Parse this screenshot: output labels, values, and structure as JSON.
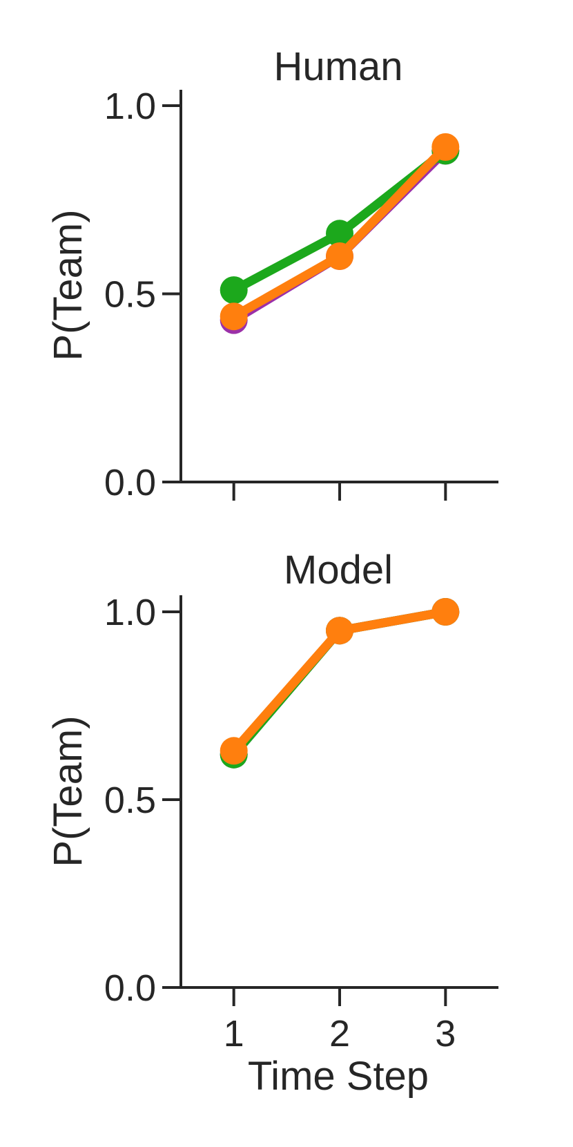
{
  "chart_data": [
    {
      "type": "line",
      "title": "Human",
      "xlabel": "",
      "ylabel": "P(Team)",
      "x": [
        1,
        2,
        3
      ],
      "xlim": [
        0.5,
        3.5
      ],
      "ylim": [
        0.0,
        1.05
      ],
      "yticks": [
        "0.0",
        "0.5",
        "1.0"
      ],
      "xticks": [
        "",
        "",
        ""
      ],
      "grid": false,
      "series": [
        {
          "color": "#9b30a8",
          "values": [
            0.43,
            0.6,
            0.88
          ]
        },
        {
          "color": "#1ca81c",
          "values": [
            0.51,
            0.66,
            0.88
          ]
        },
        {
          "color": "#ff7f0e",
          "values": [
            0.44,
            0.6,
            0.89
          ]
        }
      ]
    },
    {
      "type": "line",
      "title": "Model",
      "xlabel": "Time Step",
      "ylabel": "P(Team)",
      "x": [
        1,
        2,
        3
      ],
      "xlim": [
        0.5,
        3.5
      ],
      "ylim": [
        0.0,
        1.05
      ],
      "yticks": [
        "0.0",
        "0.5",
        "1.0"
      ],
      "xticks": [
        "1",
        "2",
        "3"
      ],
      "grid": false,
      "series": [
        {
          "color": "#9b30a8",
          "values": [
            0.62,
            0.95,
            1.0
          ]
        },
        {
          "color": "#1ca81c",
          "values": [
            0.62,
            0.95,
            1.0
          ]
        },
        {
          "color": "#ff7f0e",
          "values": [
            0.63,
            0.95,
            1.0
          ]
        }
      ]
    }
  ]
}
